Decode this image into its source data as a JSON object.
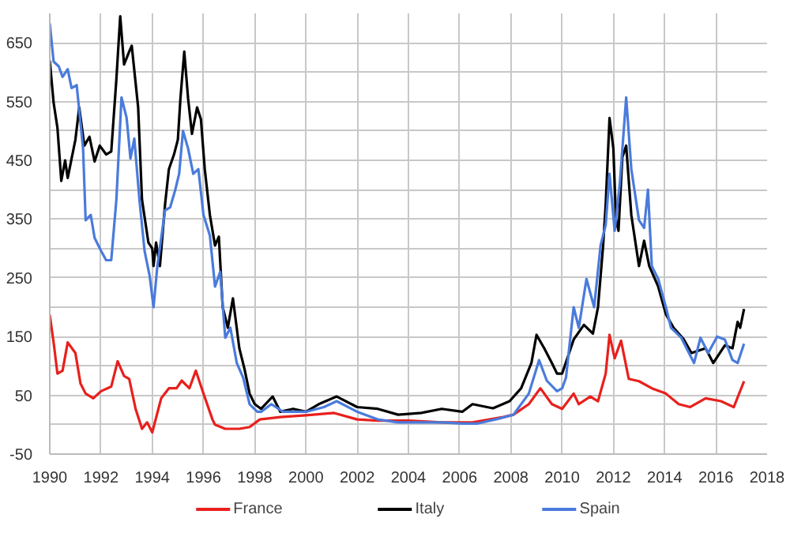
{
  "chart_data": {
    "type": "line",
    "xlim": [
      1990,
      2018
    ],
    "xticks": [
      1990,
      1992,
      1994,
      1996,
      1998,
      2000,
      2002,
      2004,
      2006,
      2008,
      2010,
      2012,
      2014,
      2016,
      2018
    ],
    "ylim": [
      -50,
      700
    ],
    "yticks": [
      -50,
      {
        "value": 0,
        "label": null
      },
      50,
      {
        "value": 100,
        "label": null
      },
      150,
      {
        "value": 200,
        "label": null
      },
      250,
      {
        "value": 300,
        "label": null
      },
      350,
      {
        "value": 400,
        "label": null
      },
      450,
      {
        "value": 500,
        "label": null
      },
      550,
      {
        "value": 600,
        "label": null
      },
      650
    ],
    "grid": true,
    "legend": "bottom",
    "line_style": "solid",
    "marker": "none",
    "series": [
      {
        "name": "France",
        "color": "#e8201c",
        "x": [
          1990,
          1990.15,
          1990.3,
          1990.5,
          1990.7,
          1991.0,
          1991.2,
          1991.4,
          1991.7,
          1992.0,
          1992.4,
          1992.65,
          1992.9,
          1993.1,
          1993.35,
          1993.6,
          1993.8,
          1994.0,
          1994.35,
          1994.65,
          1994.95,
          1995.15,
          1995.45,
          1995.7,
          1996.0,
          1996.35,
          1996.45,
          1996.85,
          1997.4,
          1997.8,
          1998.2,
          1999,
          2000,
          2001.1,
          2002,
          2002.8,
          2004,
          2005.3,
          2006.5,
          2007.7,
          2008.1,
          2008.7,
          2009.15,
          2009.6,
          2010,
          2010.45,
          2010.65,
          2011.1,
          2011.4,
          2011.7,
          2011.85,
          2012.05,
          2012.3,
          2012.6,
          2013.0,
          2013.5,
          2014.05,
          2014.55,
          2015.0,
          2015.6,
          2016.2,
          2016.7,
          2017.1
        ],
        "values": [
          187,
          140,
          87,
          92,
          140,
          122,
          70,
          53,
          45,
          57,
          65,
          108,
          83,
          78,
          27,
          -7,
          4,
          -13,
          45,
          62,
          62,
          75,
          62,
          92,
          53,
          9,
          0,
          -7,
          -7,
          -4,
          9,
          13,
          16,
          20,
          9,
          7,
          7,
          4,
          4,
          13,
          17,
          35,
          62,
          35,
          27,
          53,
          35,
          48,
          40,
          87,
          153,
          113,
          143,
          78,
          74,
          62,
          53,
          35,
          30,
          45,
          40,
          30,
          74
        ]
      },
      {
        "name": "Italy",
        "color": "#000000",
        "x": [
          1990.0,
          1990.15,
          1990.3,
          1990.45,
          1990.6,
          1990.7,
          1991.0,
          1991.15,
          1991.35,
          1991.55,
          1991.75,
          1991.95,
          1992.2,
          1992.4,
          1992.6,
          1992.75,
          1992.9,
          1993.1,
          1993.2,
          1993.45,
          1993.6,
          1993.85,
          1994.0,
          1994.05,
          1994.15,
          1994.3,
          1994.5,
          1994.65,
          1994.85,
          1995.0,
          1995.1,
          1995.25,
          1995.4,
          1995.55,
          1995.75,
          1995.9,
          1996.05,
          1996.25,
          1996.45,
          1996.6,
          1996.75,
          1996.95,
          1997.15,
          1997.4,
          1997.6,
          1997.8,
          1998.0,
          1998.25,
          1998.7,
          1999.0,
          1999.5,
          2000,
          2000.5,
          2001.2,
          2002,
          2002.8,
          2003.6,
          2004.5,
          2005.3,
          2006.1,
          2006.5,
          2007.3,
          2007.95,
          2008.4,
          2008.8,
          2009.0,
          2009.3,
          2009.6,
          2009.8,
          2010,
          2010.45,
          2010.85,
          2011.2,
          2011.4,
          2011.6,
          2011.7,
          2011.85,
          2012.0,
          2012.1,
          2012.2,
          2012.35,
          2012.5,
          2012.7,
          2013.0,
          2013.2,
          2013.4,
          2013.75,
          2014.05,
          2014.35,
          2014.75,
          2015.05,
          2015.6,
          2015.9,
          2016.35,
          2016.65,
          2016.85,
          2016.95,
          2017.1
        ],
        "values": [
          620,
          548,
          505,
          415,
          450,
          420,
          485,
          540,
          475,
          490,
          448,
          475,
          460,
          465,
          588,
          695,
          613,
          635,
          645,
          540,
          383,
          310,
          300,
          270,
          310,
          270,
          375,
          435,
          460,
          485,
          555,
          635,
          555,
          495,
          540,
          520,
          435,
          357,
          305,
          320,
          200,
          165,
          215,
          130,
          95,
          53,
          35,
          27,
          48,
          22,
          27,
          22,
          35,
          48,
          30,
          27,
          17,
          20,
          27,
          22,
          35,
          28,
          40,
          62,
          105,
          153,
          130,
          105,
          87,
          87,
          145,
          170,
          155,
          200,
          305,
          375,
          522,
          470,
          350,
          330,
          455,
          475,
          357,
          270,
          313,
          270,
          235,
          188,
          165,
          145,
          122,
          130,
          105,
          135,
          130,
          175,
          165,
          197
        ]
      },
      {
        "name": "Spain",
        "color": "#4a7bdb",
        "x": [
          1990,
          1990.15,
          1990.35,
          1990.5,
          1990.7,
          1990.85,
          1991.05,
          1991.3,
          1991.4,
          1991.6,
          1991.75,
          1992.0,
          1992.2,
          1992.4,
          1992.6,
          1992.8,
          1993.0,
          1993.15,
          1993.3,
          1993.5,
          1993.7,
          1993.9,
          1994.05,
          1994.2,
          1994.5,
          1994.7,
          1994.9,
          1995.05,
          1995.2,
          1995.4,
          1995.6,
          1995.8,
          1996.0,
          1996.25,
          1996.45,
          1996.65,
          1996.85,
          1997.05,
          1997.3,
          1997.55,
          1997.8,
          1998.1,
          1998.25,
          1998.65,
          1999.1,
          2000,
          2000.7,
          2001.2,
          2002,
          2002.8,
          2003.6,
          2004.5,
          2005.3,
          2006.1,
          2006.7,
          2007.5,
          2008.1,
          2008.7,
          2009.1,
          2009.4,
          2009.8,
          2010,
          2010.15,
          2010.45,
          2010.65,
          2010.95,
          2011.25,
          2011.5,
          2011.7,
          2011.85,
          2012.05,
          2012.25,
          2012.5,
          2012.7,
          2013.0,
          2013.2,
          2013.35,
          2013.5,
          2013.75,
          2014.05,
          2014.25,
          2014.65,
          2015.15,
          2015.4,
          2015.7,
          2016.05,
          2016.35,
          2016.65,
          2016.85,
          2017.1
        ],
        "values": [
          683,
          618,
          610,
          592,
          605,
          573,
          578,
          470,
          348,
          357,
          318,
          296,
          280,
          280,
          383,
          557,
          522,
          453,
          487,
          383,
          296,
          253,
          200,
          270,
          365,
          370,
          400,
          427,
          500,
          470,
          427,
          435,
          357,
          322,
          235,
          260,
          148,
          165,
          105,
          80,
          35,
          22,
          22,
          35,
          22,
          22,
          30,
          40,
          22,
          9,
          4,
          4,
          4,
          2,
          2,
          10,
          17,
          53,
          110,
          75,
          57,
          62,
          80,
          200,
          165,
          248,
          200,
          305,
          340,
          427,
          330,
          410,
          557,
          435,
          348,
          335,
          400,
          270,
          248,
          200,
          165,
          148,
          105,
          148,
          122,
          150,
          145,
          110,
          105,
          138
        ]
      }
    ]
  }
}
